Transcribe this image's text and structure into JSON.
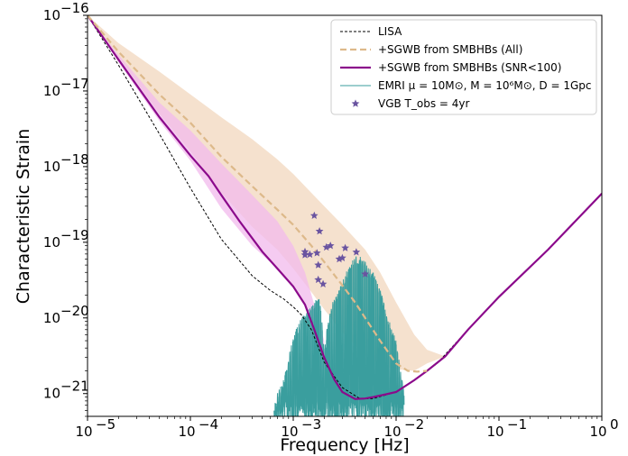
{
  "chart_data": {
    "type": "line",
    "xlabel": "Frequency [Hz]",
    "ylabel": "Characteristic Strain",
    "x_scale": "log",
    "y_scale": "log",
    "xlim": [
      1e-05,
      1
    ],
    "ylim": [
      5e-22,
      1e-16
    ],
    "x_ticks": [
      {
        "value": 1e-05,
        "base": "10",
        "exp": "−5"
      },
      {
        "value": 0.0001,
        "base": "10",
        "exp": "−4"
      },
      {
        "value": 0.001,
        "base": "10",
        "exp": "−3"
      },
      {
        "value": 0.01,
        "base": "10",
        "exp": "−2"
      },
      {
        "value": 0.1,
        "base": "10",
        "exp": "−1"
      },
      {
        "value": 1,
        "base": "10",
        "exp": "0"
      }
    ],
    "y_ticks": [
      {
        "value": 1e-21,
        "base": "10",
        "exp": "−21"
      },
      {
        "value": 1e-20,
        "base": "10",
        "exp": "−20"
      },
      {
        "value": 1e-19,
        "base": "10",
        "exp": "−19"
      },
      {
        "value": 1e-18,
        "base": "10",
        "exp": "−18"
      },
      {
        "value": 1e-17,
        "base": "10",
        "exp": "−17"
      },
      {
        "value": 1e-16,
        "base": "10",
        "exp": "−16"
      }
    ],
    "grid": false,
    "legend_position": "top-right",
    "colors": {
      "lisa": "#000000",
      "sgwb_all": "#ddb98a",
      "sgwb_all_band": "#f3dcc6",
      "sgwb_snr": "#8b0a8b",
      "sgwb_snr_band": "#f2b9ec",
      "emri": "#3a9e9e",
      "vgb": "#6a54a0"
    },
    "legend": [
      {
        "key": "lisa",
        "label": "LISA"
      },
      {
        "key": "sgwb_all",
        "label": "+SGWB from SMBHBs (All)"
      },
      {
        "key": "sgwb_snr",
        "label": "+SGWB from SMBHBs (SNR<100)"
      },
      {
        "key": "emri",
        "label": "EMRI μ = 10M⊙, M = 10⁶M⊙, D = 1Gpc"
      },
      {
        "key": "vgb",
        "label": "VGB  T_obs = 4yr"
      }
    ],
    "series": [
      {
        "key": "lisa",
        "x": [
          1e-05,
          2e-05,
          5e-05,
          0.0001,
          0.0002,
          0.0004,
          0.0006,
          0.0008,
          0.001,
          0.0012,
          0.0015,
          0.002,
          0.003,
          0.0045,
          0.006,
          0.01,
          0.015,
          0.025,
          0.05,
          0.1,
          0.3,
          1
        ],
        "y": [
          1e-16,
          2.2e-17,
          2.7e-18,
          5.2e-19,
          1.1e-19,
          3.6e-20,
          2.3e-20,
          1.8e-20,
          1.4e-20,
          1.1e-20,
          7e-21,
          2.6e-21,
          1.2e-21,
          8.5e-22,
          8.6e-22,
          1.05e-21,
          1.5e-21,
          2.5e-21,
          7e-21,
          1.9e-20,
          8e-20,
          4.4e-19
        ]
      },
      {
        "key": "sgwb_snr",
        "x": [
          1e-05,
          2e-05,
          5e-05,
          0.0001,
          0.00015,
          0.0002,
          0.0003,
          0.0005,
          0.0007,
          0.001,
          0.0013,
          0.0016,
          0.002,
          0.0025,
          0.003,
          0.004,
          0.005,
          0.006,
          0.008,
          0.01,
          0.015,
          0.02,
          0.03,
          0.05,
          0.1,
          0.3,
          1
        ],
        "y": [
          1e-16,
          2.6e-17,
          4.5e-18,
          1.4e-18,
          7.5e-19,
          4.2e-19,
          1.9e-19,
          7.5e-20,
          4.5e-20,
          2.6e-20,
          1.5e-20,
          7e-21,
          3e-21,
          1.55e-21,
          1.05e-21,
          8.5e-22,
          8.6e-22,
          9e-22,
          9.8e-22,
          1.05e-21,
          1.5e-21,
          2e-21,
          3.1e-21,
          7e-21,
          1.9e-20,
          8e-20,
          4.4e-19
        ]
      },
      {
        "key": "sgwb_all",
        "x": [
          1e-05,
          2e-05,
          5e-05,
          0.0001,
          0.0002,
          0.0004,
          0.0007,
          0.001,
          0.0015,
          0.002,
          0.003,
          0.004,
          0.005,
          0.007,
          0.01,
          0.013,
          0.016,
          0.02
        ],
        "y": [
          1e-16,
          3.3e-17,
          9e-18,
          3.8e-18,
          1.35e-18,
          5.5e-19,
          2.7e-19,
          1.7e-19,
          9e-20,
          5.5e-20,
          2.7e-20,
          1.6e-20,
          1e-20,
          5e-21,
          2.5e-21,
          2e-21,
          1.95e-21,
          2e-21
        ]
      }
    ],
    "bands": [
      {
        "key": "sgwb_all_band",
        "x": [
          1e-05,
          2e-05,
          5e-05,
          0.0001,
          0.0002,
          0.0004,
          0.0007,
          0.001,
          0.0015,
          0.002,
          0.003,
          0.005,
          0.007,
          0.01,
          0.015,
          0.02,
          0.03
        ],
        "upper": [
          1e-16,
          4.3e-17,
          1.8e-17,
          9e-18,
          4.5e-18,
          2.3e-18,
          1.25e-18,
          8e-19,
          4.5e-19,
          3e-19,
          1.7e-19,
          8e-20,
          4e-20,
          1.6e-20,
          6e-21,
          3.8e-21,
          3.1e-21
        ],
        "lower": [
          1e-16,
          2.8e-17,
          5e-18,
          1.6e-18,
          4.5e-19,
          1.6e-19,
          8e-20,
          4.5e-20,
          2.2e-20,
          1.3e-20,
          6.5e-21,
          3.2e-21,
          2.4e-21,
          2.1e-21,
          2e-21,
          2.5e-21,
          3.1e-21
        ]
      },
      {
        "key": "sgwb_snr_band",
        "x": [
          1e-05,
          2e-05,
          5e-05,
          0.0001,
          0.0002,
          0.0004,
          0.0007,
          0.001,
          0.0013,
          0.0016,
          0.002
        ],
        "upper": [
          1e-16,
          3e-17,
          7e-18,
          3e-18,
          1.1e-18,
          4.2e-19,
          1.9e-19,
          9e-20,
          4e-20,
          1.5e-20,
          5e-21
        ],
        "lower": [
          1e-16,
          2.4e-17,
          4e-18,
          1.2e-18,
          2.8e-19,
          9e-20,
          4.5e-20,
          2.6e-20,
          1.5e-20,
          7e-21,
          3e-21
        ]
      }
    ],
    "vgb_points": [
      {
        "x": 0.0013,
        "y": 7.5e-20
      },
      {
        "x": 0.0013,
        "y": 6.8e-20
      },
      {
        "x": 0.00145,
        "y": 6.9e-20
      },
      {
        "x": 0.0016,
        "y": 2.25e-19
      },
      {
        "x": 0.0017,
        "y": 7.2e-20
      },
      {
        "x": 0.00175,
        "y": 5e-20
      },
      {
        "x": 0.00175,
        "y": 3.2e-20
      },
      {
        "x": 0.0018,
        "y": 1.4e-19
      },
      {
        "x": 0.00195,
        "y": 2.8e-20
      },
      {
        "x": 0.0021,
        "y": 8.6e-20
      },
      {
        "x": 0.0023,
        "y": 9e-20
      },
      {
        "x": 0.0028,
        "y": 6e-20
      },
      {
        "x": 0.003,
        "y": 6.2e-20
      },
      {
        "x": 0.0032,
        "y": 8.4e-20
      },
      {
        "x": 0.0041,
        "y": 7.4e-20
      },
      {
        "x": 0.005,
        "y": 3.8e-20
      }
    ],
    "emri_envelope": {
      "x": [
        0.00065,
        0.0007,
        0.0008,
        0.0009,
        0.001,
        0.0012,
        0.0015,
        0.0018,
        0.002,
        0.0023,
        0.0026,
        0.003,
        0.0035,
        0.004,
        0.0045,
        0.005,
        0.006,
        0.007,
        0.008,
        0.01,
        0.012
      ],
      "y": [
        6e-22,
        1e-21,
        1.5e-21,
        3e-21,
        6e-21,
        1e-20,
        1.5e-20,
        2e-20,
        4e-21,
        1.5e-20,
        2e-20,
        3e-20,
        5e-20,
        6.5e-20,
        6.5e-20,
        5.5e-20,
        4e-20,
        2.5e-20,
        1.2e-20,
        5e-21,
        1e-21
      ]
    }
  }
}
